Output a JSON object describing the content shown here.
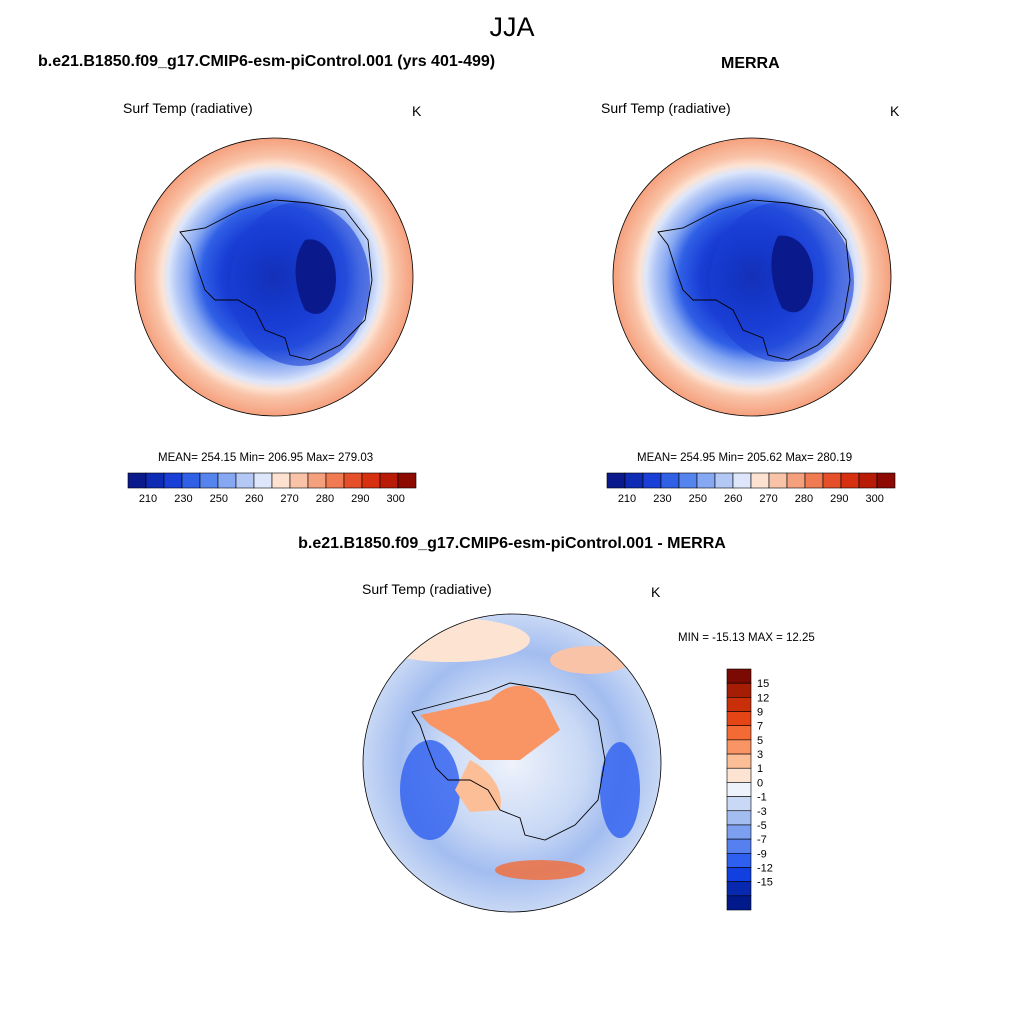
{
  "figure": {
    "season": "JJA"
  },
  "panels": [
    {
      "id": "model",
      "title": "b.e21.B1850.f09_g17.CMIP6-esm-piControl.001 (yrs 401-499)",
      "variable": "Surf Temp (radiative)",
      "units": "K",
      "stats_text": "MEAN= 254.15  Min= 206.95  Max= 279.03",
      "stats": {
        "mean": 254.15,
        "min": 206.95,
        "max": 279.03
      }
    },
    {
      "id": "obs",
      "title": "MERRA",
      "variable": "Surf Temp (radiative)",
      "units": "K",
      "stats_text": "MEAN= 254.95  Min= 205.62  Max= 280.19",
      "stats": {
        "mean": 254.95,
        "min": 205.62,
        "max": 280.19
      }
    },
    {
      "id": "difference",
      "title": "b.e21.B1850.f09_g17.CMIP6-esm-piControl.001 - MERRA",
      "variable": "Surf Temp (radiative)",
      "units": "K",
      "stats_text": "MIN = -15.13 MAX =  12.25",
      "stats": {
        "min": -15.13,
        "max": 12.25
      }
    }
  ],
  "colorbars": {
    "absolute": {
      "orientation": "horizontal",
      "tick_labels": [
        "210",
        "230",
        "250",
        "260",
        "270",
        "280",
        "290",
        "300"
      ],
      "colors": [
        "#0a1a8c",
        "#0d2bb4",
        "#1a3fd6",
        "#3060e6",
        "#5584ee",
        "#86a8f2",
        "#b4c8f6",
        "#dde6fa",
        "#fde2d2",
        "#f9c3a8",
        "#f5a07d",
        "#f07a52",
        "#e54f29",
        "#d63010",
        "#b81c06",
        "#8c0a02"
      ]
    },
    "difference": {
      "orientation": "vertical",
      "tick_labels": [
        "15",
        "12",
        "9",
        "7",
        "5",
        "3",
        "1",
        "0",
        "-1",
        "-3",
        "-5",
        "-7",
        "-9",
        "-12",
        "-15"
      ],
      "colors": [
        "#7a0a02",
        "#a51d04",
        "#c9300a",
        "#e54414",
        "#f46a34",
        "#f99564",
        "#fbbe96",
        "#fde4d2",
        "#eef2fb",
        "#c8d8f5",
        "#a3bdf0",
        "#7c9ff0",
        "#5680ef",
        "#2e5ff0",
        "#123fe0",
        "#0828b0",
        "#001a8c"
      ]
    }
  }
}
